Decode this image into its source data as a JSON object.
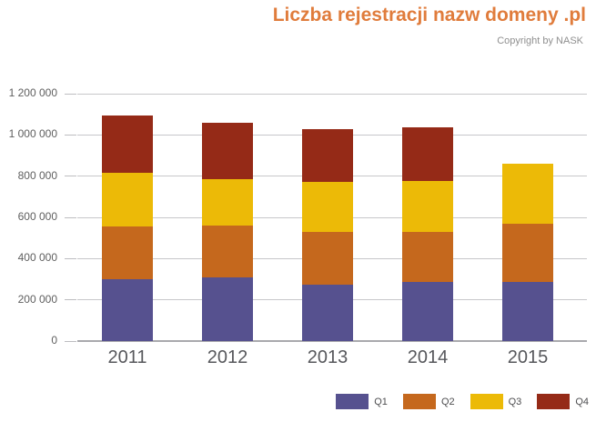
{
  "header": {
    "title": "Liczba rejestracji nazw domeny .pl",
    "copyright": "Copyright by NASK"
  },
  "colors": {
    "title_accent": "#e07c3c",
    "q1": "#56518f",
    "q2": "#c5681d",
    "q3": "#ecba07",
    "q4": "#952a17",
    "gridline": "#c7c7ca",
    "axis_line": "#a9a9ad",
    "y_label_text": "#5f5f5f",
    "x_label_text": "#57585c",
    "legend_text": "#4e4e50"
  },
  "chart_data": {
    "type": "bar",
    "stacked": true,
    "title": "Liczba rejestracji nazw domeny .pl",
    "subtitle": "Copyright by NASK",
    "categories": [
      "2011",
      "2012",
      "2013",
      "2014",
      "2015"
    ],
    "series": [
      {
        "name": "Q1",
        "color": "#56518f",
        "values": [
          300000,
          310000,
          275000,
          285000,
          285000
        ]
      },
      {
        "name": "Q2",
        "color": "#c5681d",
        "values": [
          255000,
          250000,
          255000,
          245000,
          285000
        ]
      },
      {
        "name": "Q3",
        "color": "#ecba07",
        "values": [
          260000,
          225000,
          240000,
          245000,
          290000
        ]
      },
      {
        "name": "Q4",
        "color": "#952a17",
        "values": [
          280000,
          275000,
          260000,
          260000,
          0
        ]
      }
    ],
    "totals_by_year": [
      1095000,
      1060000,
      1030000,
      1035000,
      860000
    ],
    "xlabel": "",
    "ylabel": "",
    "ylim": [
      0,
      1200000
    ],
    "yticks": [
      0,
      200000,
      400000,
      600000,
      800000,
      1000000,
      1200000
    ],
    "ytick_labels": [
      "0",
      "200 000",
      "400 000",
      "600 000",
      "800 000",
      "1 000 000",
      "1 200 000"
    ],
    "grid": true,
    "legend_position": "bottom-right"
  }
}
